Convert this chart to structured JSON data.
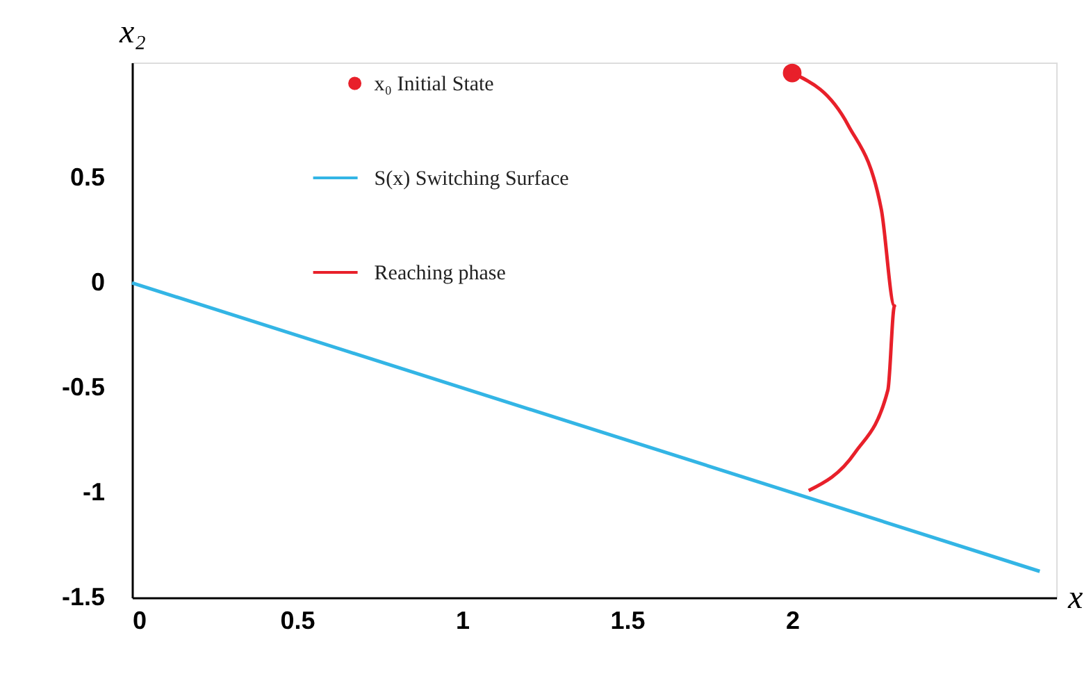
{
  "chart_data": {
    "type": "line",
    "xlabel": "x",
    "ylabel": "x₂",
    "xlim": [
      0,
      2.8
    ],
    "ylim": [
      -1.5,
      1.05
    ],
    "xticks": [
      0,
      0.5,
      1,
      1.5,
      2
    ],
    "yticks": [
      -1.5,
      -1,
      -0.5,
      0,
      0.5
    ],
    "legend": "top",
    "series": [
      {
        "name": "x₀ Initial State",
        "type": "scatter",
        "marker": "circle",
        "color": "#e8202a",
        "x": [
          2.0
        ],
        "values": [
          1.0
        ]
      },
      {
        "name": "S(x) Switching Surface",
        "type": "line",
        "color": "#33b5e5",
        "x": [
          0,
          2.75
        ],
        "values": [
          0,
          -1.375
        ]
      },
      {
        "name": "Reaching phase",
        "type": "line",
        "color": "#e8202a",
        "x": [
          2.0,
          2.17,
          2.27,
          2.31,
          2.29,
          2.19,
          2.05
        ],
        "values": [
          1.0,
          0.75,
          0.35,
          -0.11,
          -0.51,
          -0.81,
          -0.99
        ]
      }
    ]
  }
}
